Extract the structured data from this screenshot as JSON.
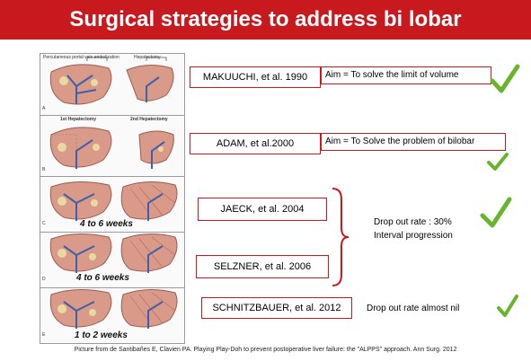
{
  "title": "Surgical strategies to address bi lobar",
  "figure": {
    "panel_a": {
      "label": "A",
      "step1_title": "Percutaneous portal vein embolization",
      "step2_title": "Hepatectomy"
    },
    "panel_b": {
      "label": "B",
      "step1_title": "1st Hepatectomy",
      "step2_title": "2nd Hepatectomy"
    },
    "panel_c": {
      "label": "C",
      "interval": "4 to 6 weeks"
    },
    "panel_d": {
      "label": "D",
      "interval": "4 to 6 weeks"
    },
    "panel_e": {
      "label": "E",
      "interval": "1 to 2 weeks"
    }
  },
  "references": [
    {
      "citation": "MAKUUCHI, et al. 1990",
      "aim": "Aim = To solve the limit of volume"
    },
    {
      "citation": "ADAM, et al.2000",
      "aim": "Aim = To Solve the problem of bilobar"
    },
    {
      "citation": "JAECK, et al. 2004"
    },
    {
      "citation": "SELZNER, et al. 2006"
    },
    {
      "citation": "SCHNITZBAUER, et al. 2012"
    }
  ],
  "notes": {
    "dropout_line1": "Drop out rate : 30%",
    "dropout_line2": "Interval progression",
    "dropout_nil": "Drop out rate almost nil"
  },
  "caption": "Picture from de Santibañes E, Clavien PA. Playing Play-Doh to prevent postoperative liver failure: the \"ALPPS\" approach. Ann Surg. 2012",
  "colors": {
    "title_bar": "#c8191f",
    "box_border": "#c8191f",
    "check": "#6ab42d",
    "liver": "#d99a8a",
    "vessel": "#3f5fa8",
    "tumor": "#e8d9a0"
  },
  "icons": {
    "check": "check-mark-icon",
    "bracket": "curly-bracket-icon"
  }
}
